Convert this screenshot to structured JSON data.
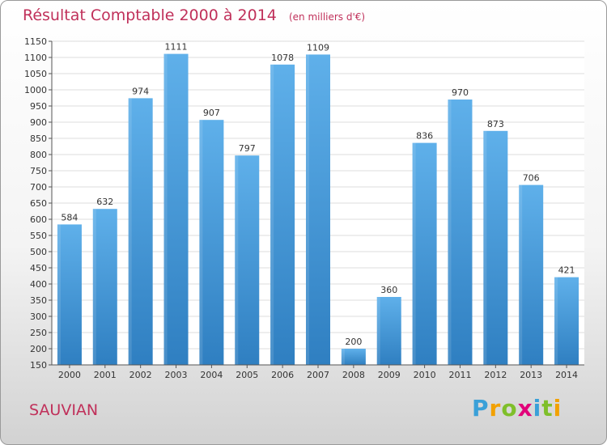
{
  "chart_data": {
    "type": "bar",
    "title": "Résultat Comptable 2000 à 2014",
    "subtitle": "(en milliers d'€)",
    "categories": [
      "2000",
      "2001",
      "2002",
      "2003",
      "2004",
      "2005",
      "2006",
      "2007",
      "2008",
      "2009",
      "2010",
      "2011",
      "2012",
      "2013",
      "2014"
    ],
    "values": [
      584,
      632,
      974,
      1111,
      907,
      797,
      1078,
      1109,
      200,
      360,
      836,
      970,
      873,
      706,
      421
    ],
    "ylim": [
      150,
      1150
    ],
    "yticks": [
      150,
      200,
      250,
      300,
      350,
      400,
      450,
      500,
      550,
      600,
      650,
      700,
      750,
      800,
      850,
      900,
      950,
      1000,
      1050,
      1100,
      1150
    ],
    "grid": true,
    "colors": {
      "bar": "#4d9fde",
      "bar_light": "#5fb0ea",
      "bar_dark": "#2f7fc1",
      "title": "#c0305a"
    }
  },
  "commune": "SAUVIAN",
  "logo": {
    "text": "Proxiti",
    "letters": [
      {
        "ch": "P",
        "color": "#3aa0d8"
      },
      {
        "ch": "r",
        "color": "#f2a100"
      },
      {
        "ch": "o",
        "color": "#7fbf2a"
      },
      {
        "ch": "x",
        "color": "#e2007a"
      },
      {
        "ch": "i",
        "color": "#3aa0d8"
      },
      {
        "ch": "t",
        "color": "#7fbf2a"
      },
      {
        "ch": "i",
        "color": "#f2a100"
      }
    ]
  }
}
